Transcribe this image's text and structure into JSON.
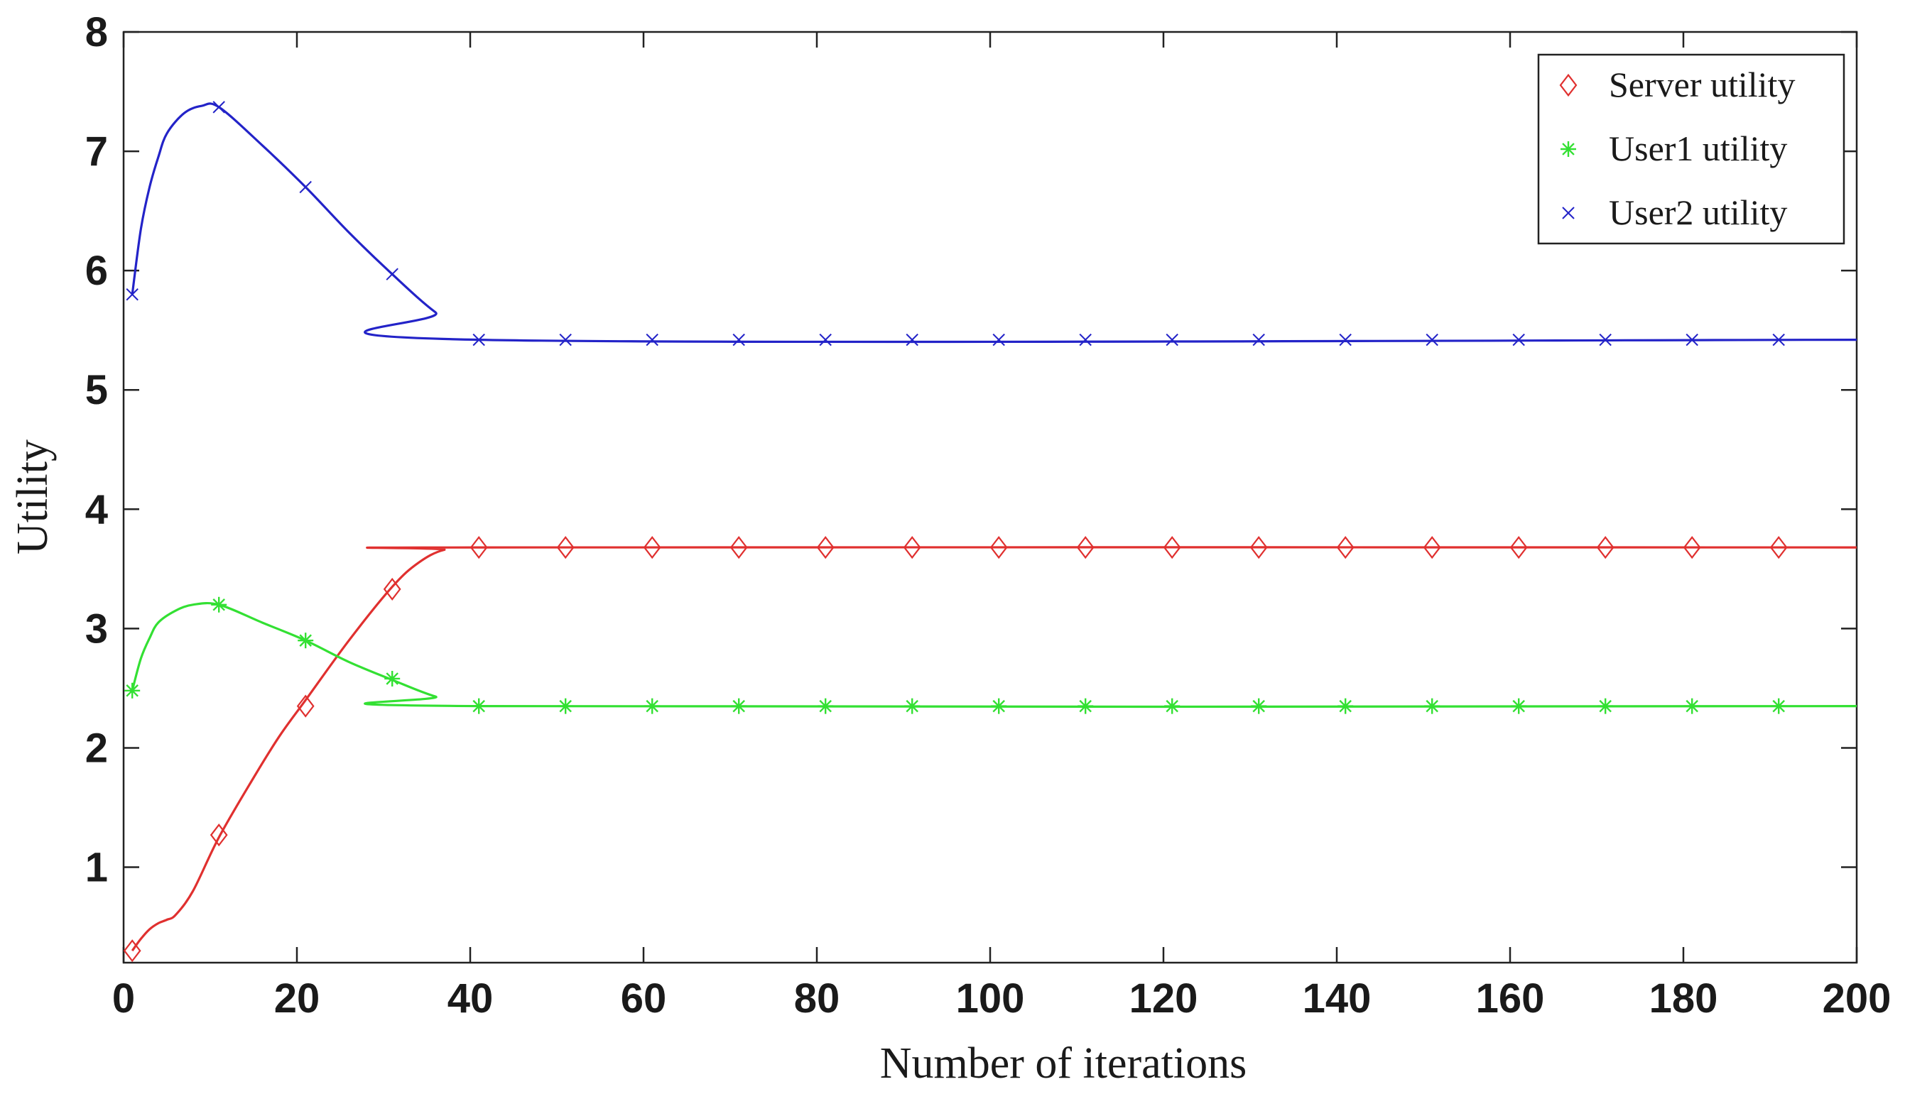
{
  "chart_data": {
    "type": "line",
    "title": "",
    "xlabel": "Number of iterations",
    "ylabel": "Utility",
    "xlim": [
      0,
      200
    ],
    "ylim": [
      0.2,
      8
    ],
    "xticks": [
      0,
      20,
      40,
      60,
      80,
      100,
      120,
      140,
      160,
      180,
      200
    ],
    "yticks": [
      1,
      2,
      3,
      4,
      5,
      6,
      7,
      8
    ],
    "grid": false,
    "legend_position": "top-right",
    "series": [
      {
        "name": "Server utility",
        "color": "#e0302f",
        "marker": "diamond",
        "line": [
          [
            1,
            0.3
          ],
          [
            2,
            0.4
          ],
          [
            3,
            0.48
          ],
          [
            4,
            0.53
          ],
          [
            5,
            0.56
          ],
          [
            6,
            0.6
          ],
          [
            8,
            0.8
          ],
          [
            11,
            1.25
          ],
          [
            15,
            1.75
          ],
          [
            18,
            2.1
          ],
          [
            21,
            2.4
          ],
          [
            26,
            2.9
          ],
          [
            31,
            3.35
          ],
          [
            34,
            3.55
          ],
          [
            37,
            3.66
          ],
          [
            41,
            3.68
          ],
          [
            200,
            3.68
          ]
        ],
        "marker_points": [
          [
            1,
            0.3
          ],
          [
            11,
            1.27
          ],
          [
            21,
            2.35
          ],
          [
            31,
            3.33
          ],
          [
            41,
            3.68
          ],
          [
            51,
            3.68
          ],
          [
            61,
            3.68
          ],
          [
            71,
            3.68
          ],
          [
            81,
            3.68
          ],
          [
            91,
            3.68
          ],
          [
            101,
            3.68
          ],
          [
            111,
            3.68
          ],
          [
            121,
            3.68
          ],
          [
            131,
            3.68
          ],
          [
            141,
            3.68
          ],
          [
            151,
            3.68
          ],
          [
            161,
            3.68
          ],
          [
            171,
            3.68
          ],
          [
            181,
            3.68
          ],
          [
            191,
            3.68
          ]
        ]
      },
      {
        "name": "User1 utility",
        "color": "#33e033",
        "marker": "asterisk",
        "line": [
          [
            1,
            2.48
          ],
          [
            2,
            2.75
          ],
          [
            3,
            2.92
          ],
          [
            4,
            3.05
          ],
          [
            6,
            3.15
          ],
          [
            8,
            3.2
          ],
          [
            11,
            3.2
          ],
          [
            16,
            3.05
          ],
          [
            21,
            2.9
          ],
          [
            26,
            2.72
          ],
          [
            31,
            2.57
          ],
          [
            36,
            2.43
          ],
          [
            41,
            2.35
          ],
          [
            200,
            2.35
          ]
        ],
        "marker_points": [
          [
            1,
            2.48
          ],
          [
            11,
            3.2
          ],
          [
            21,
            2.9
          ],
          [
            31,
            2.58
          ],
          [
            41,
            2.35
          ],
          [
            51,
            2.35
          ],
          [
            61,
            2.35
          ],
          [
            71,
            2.35
          ],
          [
            81,
            2.35
          ],
          [
            91,
            2.35
          ],
          [
            101,
            2.35
          ],
          [
            111,
            2.35
          ],
          [
            121,
            2.35
          ],
          [
            131,
            2.35
          ],
          [
            141,
            2.35
          ],
          [
            151,
            2.35
          ],
          [
            161,
            2.35
          ],
          [
            171,
            2.35
          ],
          [
            181,
            2.35
          ],
          [
            191,
            2.35
          ]
        ]
      },
      {
        "name": "User2 utility",
        "color": "#2323c8",
        "marker": "x",
        "line": [
          [
            1,
            5.8
          ],
          [
            2,
            6.35
          ],
          [
            3,
            6.7
          ],
          [
            4,
            6.95
          ],
          [
            5,
            7.15
          ],
          [
            7,
            7.32
          ],
          [
            9,
            7.38
          ],
          [
            11,
            7.37
          ],
          [
            16,
            7.05
          ],
          [
            21,
            6.7
          ],
          [
            26,
            6.32
          ],
          [
            31,
            5.97
          ],
          [
            36,
            5.65
          ],
          [
            41,
            5.42
          ],
          [
            200,
            5.42
          ]
        ],
        "marker_points": [
          [
            1,
            5.8
          ],
          [
            11,
            7.37
          ],
          [
            21,
            6.7
          ],
          [
            31,
            5.97
          ],
          [
            41,
            5.42
          ],
          [
            51,
            5.42
          ],
          [
            61,
            5.42
          ],
          [
            71,
            5.42
          ],
          [
            81,
            5.42
          ],
          [
            91,
            5.42
          ],
          [
            101,
            5.42
          ],
          [
            111,
            5.42
          ],
          [
            121,
            5.42
          ],
          [
            131,
            5.42
          ],
          [
            141,
            5.42
          ],
          [
            151,
            5.42
          ],
          [
            161,
            5.42
          ],
          [
            171,
            5.42
          ],
          [
            181,
            5.42
          ],
          [
            191,
            5.42
          ]
        ]
      }
    ]
  }
}
